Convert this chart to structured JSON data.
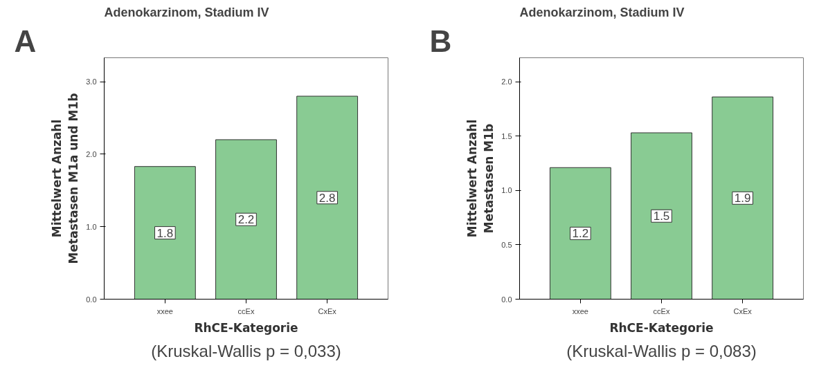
{
  "chart_data": [
    {
      "type": "bar",
      "title": "Adenokarzinom, Stadium IV",
      "xlabel": "RhCE-Kategorie",
      "ylabel": "Mittelwert Anzahl\nMetastasen M1a und M1b",
      "categories": [
        "xxee",
        "ccEx",
        "CxEx"
      ],
      "values": [
        1.83,
        2.2,
        2.8
      ],
      "value_labels": [
        "1.8",
        "2.2",
        "2.8"
      ],
      "color": "#89cb93",
      "ylim": [
        0,
        3.33
      ],
      "yticks": [
        {
          "value": 0,
          "label": "0.0"
        },
        {
          "value": 1,
          "label": "1.0"
        },
        {
          "value": 2,
          "label": "2.0"
        },
        {
          "value": 3,
          "label": "3.0"
        }
      ],
      "grid": false,
      "annotations": [
        "A",
        "(Kruskal-Wallis p = 0,033)"
      ]
    },
    {
      "type": "bar",
      "title": "Adenokarzinom, Stadium IV",
      "xlabel": "RhCE-Kategorie",
      "ylabel": "Mittelwert Anzahl\nMetastasen M1b",
      "categories": [
        "xxee",
        "ccEx",
        "CxEx"
      ],
      "values": [
        1.21,
        1.53,
        1.86
      ],
      "value_labels": [
        "1.2",
        "1.5",
        "1.9"
      ],
      "color": "#89cb93",
      "ylim": [
        0,
        2.22
      ],
      "yticks": [
        {
          "value": 0,
          "label": "0.0"
        },
        {
          "value": 0.5,
          "label": "0.5"
        },
        {
          "value": 1,
          "label": "1.0"
        },
        {
          "value": 1.5,
          "label": "1.5"
        },
        {
          "value": 2,
          "label": "2.0"
        }
      ],
      "grid": false,
      "annotations": [
        "B",
        "(Kruskal-Wallis p = 0,083)"
      ]
    }
  ]
}
